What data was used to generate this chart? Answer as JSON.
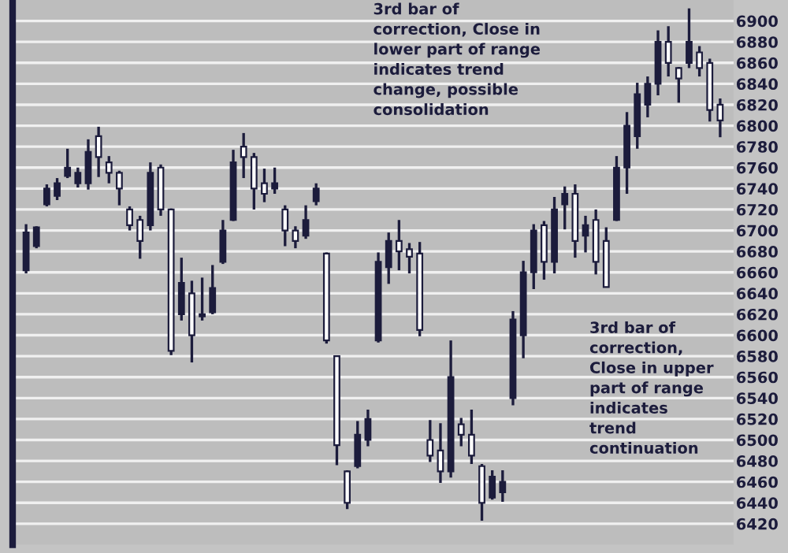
{
  "chart_data": {
    "type": "candlestick",
    "categories": [
      null,
      null,
      null,
      null,
      null,
      null,
      null,
      null,
      null,
      null,
      null,
      null,
      null,
      null,
      null,
      null,
      null,
      null,
      null,
      null,
      null,
      null,
      null,
      null,
      null,
      null,
      null,
      null,
      null,
      null,
      null,
      null,
      null,
      null,
      null,
      null,
      null,
      null,
      null,
      null,
      null,
      null,
      null,
      null,
      null,
      null,
      null,
      null,
      null,
      null,
      null,
      null,
      null,
      null,
      null,
      null,
      null,
      null,
      null,
      null,
      null,
      null,
      null,
      null,
      null,
      null,
      null,
      null
    ],
    "ohlc": [
      [
        6662,
        6706,
        6659,
        6698
      ],
      [
        6685,
        6704,
        6683,
        6703
      ],
      [
        6725,
        6744,
        6723,
        6740
      ],
      [
        6733,
        6750,
        6729,
        6745
      ],
      [
        6752,
        6778,
        6750,
        6760
      ],
      [
        6745,
        6760,
        6741,
        6755
      ],
      [
        6745,
        6787,
        6739,
        6775
      ],
      [
        6790,
        6799,
        6751,
        6770
      ],
      [
        6765,
        6771,
        6745,
        6755
      ],
      [
        6755,
        6757,
        6724,
        6740
      ],
      [
        6720,
        6723,
        6700,
        6705
      ],
      [
        6710,
        6714,
        6673,
        6690
      ],
      [
        6705,
        6765,
        6700,
        6755
      ],
      [
        6760,
        6763,
        6714,
        6720
      ],
      [
        6720,
        6721,
        6581,
        6585
      ],
      [
        6620,
        6674,
        6614,
        6650
      ],
      [
        6640,
        6652,
        6574,
        6600
      ],
      [
        6618,
        6655,
        6614,
        6620
      ],
      [
        6622,
        6667,
        6620,
        6645
      ],
      [
        6670,
        6710,
        6668,
        6700
      ],
      [
        6710,
        6777,
        6709,
        6765
      ],
      [
        6780,
        6793,
        6750,
        6770
      ],
      [
        6770,
        6774,
        6720,
        6740
      ],
      [
        6745,
        6759,
        6727,
        6735
      ],
      [
        6740,
        6760,
        6735,
        6745
      ],
      [
        6720,
        6724,
        6685,
        6700
      ],
      [
        6700,
        6704,
        6683,
        6690
      ],
      [
        6695,
        6724,
        6692,
        6710
      ],
      [
        6728,
        6745,
        6724,
        6740
      ],
      [
        6678,
        6679,
        6592,
        6595
      ],
      [
        6580,
        6580,
        6476,
        6495
      ],
      [
        6470,
        6471,
        6434,
        6440
      ],
      [
        6475,
        6518,
        6473,
        6505
      ],
      [
        6500,
        6529,
        6494,
        6520
      ],
      [
        6595,
        6679,
        6593,
        6670
      ],
      [
        6665,
        6698,
        6649,
        6690
      ],
      [
        6690,
        6710,
        6662,
        6680
      ],
      [
        6682,
        6688,
        6659,
        6675
      ],
      [
        6678,
        6689,
        6599,
        6605
      ],
      [
        6500,
        6519,
        6479,
        6485
      ],
      [
        6490,
        6516,
        6459,
        6470
      ],
      [
        6470,
        6595,
        6464,
        6560
      ],
      [
        6515,
        6521,
        6494,
        6505
      ],
      [
        6505,
        6529,
        6477,
        6485
      ],
      [
        6475,
        6477,
        6423,
        6440
      ],
      [
        6445,
        6471,
        6443,
        6465
      ],
      [
        6450,
        6471,
        6441,
        6460
      ],
      [
        6540,
        6623,
        6533,
        6615
      ],
      [
        6600,
        6671,
        6578,
        6660
      ],
      [
        6660,
        6706,
        6644,
        6700
      ],
      [
        6705,
        6709,
        6653,
        6670
      ],
      [
        6670,
        6732,
        6659,
        6720
      ],
      [
        6725,
        6742,
        6701,
        6735
      ],
      [
        6735,
        6744,
        6674,
        6690
      ],
      [
        6695,
        6714,
        6679,
        6705
      ],
      [
        6710,
        6720,
        6658,
        6670
      ],
      [
        6690,
        6703,
        6646,
        6646
      ],
      [
        6710,
        6771,
        6709,
        6760
      ],
      [
        6760,
        6813,
        6735,
        6800
      ],
      [
        6790,
        6841,
        6778,
        6830
      ],
      [
        6820,
        6847,
        6808,
        6840
      ],
      [
        6840,
        6891,
        6829,
        6880
      ],
      [
        6880,
        6895,
        6847,
        6860
      ],
      [
        6855,
        6856,
        6822,
        6845
      ],
      [
        6860,
        6912,
        6855,
        6880
      ],
      [
        6870,
        6876,
        6847,
        6855
      ],
      [
        6860,
        6864,
        6804,
        6815
      ],
      [
        6820,
        6826,
        6789,
        6805
      ]
    ],
    "color": "#1c1c3c",
    "ylim": [
      6400,
      6920
    ],
    "yticks": [
      6420,
      6440,
      6460,
      6480,
      6500,
      6520,
      6540,
      6560,
      6580,
      6600,
      6620,
      6640,
      6660,
      6680,
      6700,
      6720,
      6740,
      6760,
      6780,
      6800,
      6820,
      6840,
      6860,
      6880,
      6900
    ],
    "grid": "y",
    "tick_labels": "y",
    "annotations": [
      "3rd bar of\ncorrection, Close in\nlower part of range\nindicates trend\nchange, possible\nconsolidation",
      "3rd bar of\ncorrection,\nClose in upper\npart of range\nindicates\ntrend\ncontinuation"
    ]
  }
}
